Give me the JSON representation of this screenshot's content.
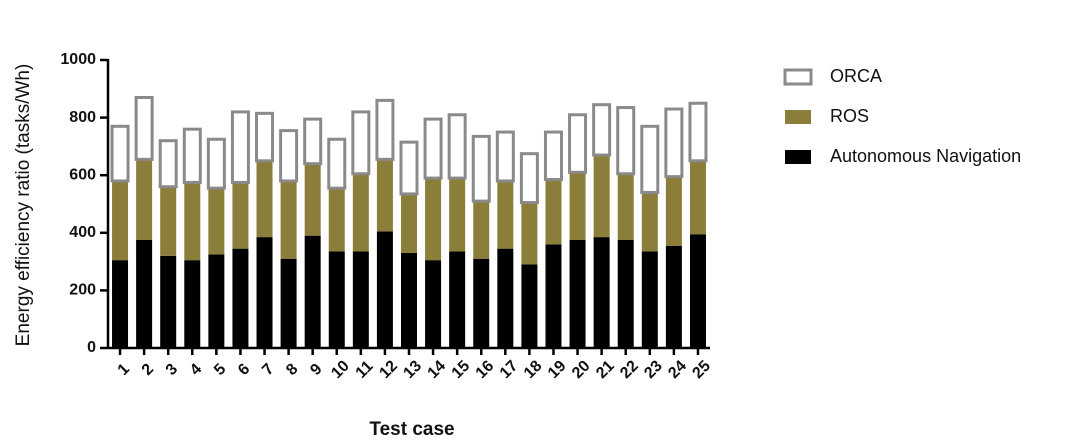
{
  "chart_data": {
    "type": "stacked_bar",
    "x_label": "Test case",
    "y_label": "Energy efficiency ratio (tasks/Wh)",
    "categories": [
      "1",
      "2",
      "3",
      "4",
      "5",
      "6",
      "7",
      "8",
      "9",
      "10",
      "11",
      "12",
      "13",
      "14",
      "15",
      "16",
      "17",
      "18",
      "19",
      "20",
      "21",
      "22",
      "23",
      "24",
      "25"
    ],
    "series": [
      {
        "name": "Autonomous Navigation",
        "color": "#000000",
        "values": [
          305,
          375,
          320,
          305,
          325,
          345,
          385,
          310,
          390,
          335,
          335,
          405,
          330,
          305,
          335,
          310,
          345,
          290,
          360,
          375,
          385,
          375,
          335,
          355,
          395
        ]
      },
      {
        "name": "ROS",
        "color": "#8b7d3a",
        "values": [
          275,
          280,
          240,
          270,
          230,
          230,
          265,
          270,
          250,
          220,
          270,
          250,
          205,
          285,
          255,
          200,
          235,
          215,
          225,
          235,
          285,
          230,
          205,
          240,
          255
        ]
      },
      {
        "name": "ORCA",
        "color": "#ffffff",
        "values": [
          195,
          220,
          165,
          190,
          175,
          250,
          170,
          180,
          160,
          175,
          220,
          210,
          185,
          210,
          225,
          230,
          175,
          175,
          170,
          205,
          180,
          235,
          235,
          240,
          205
        ]
      }
    ],
    "ylim": [
      0,
      1000
    ],
    "yticks": [
      0,
      200,
      400,
      600,
      800,
      1000
    ]
  }
}
